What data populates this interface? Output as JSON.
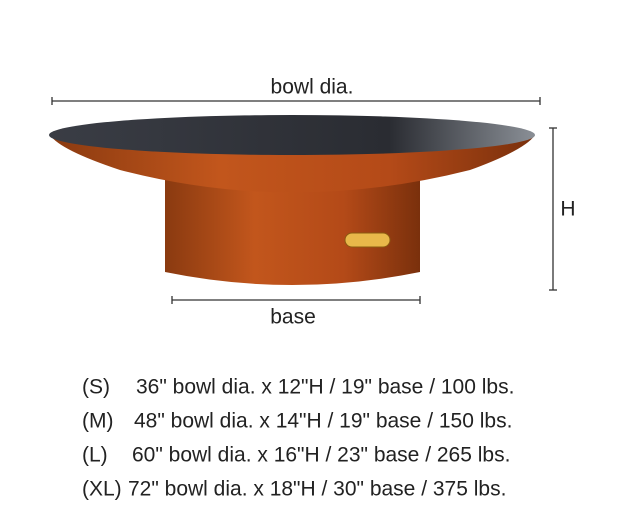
{
  "labels": {
    "bowl_dia": "bowl dia.",
    "height": "H",
    "base": "base"
  },
  "sizes": [
    {
      "code": "(S)",
      "spec": "36\" bowl dia. x 12\"H / 19\" base / 100 lbs."
    },
    {
      "code": "(M)",
      "spec": "48\" bowl dia. x 14\"H / 19\" base / 150 lbs."
    },
    {
      "code": "(L)",
      "spec": "60\" bowl dia. x 16\"H / 23\" base / 265 lbs."
    },
    {
      "code": "(XL)",
      "spec": "72\" bowl dia. x 18\"H / 30\" base / 375 lbs."
    }
  ]
}
